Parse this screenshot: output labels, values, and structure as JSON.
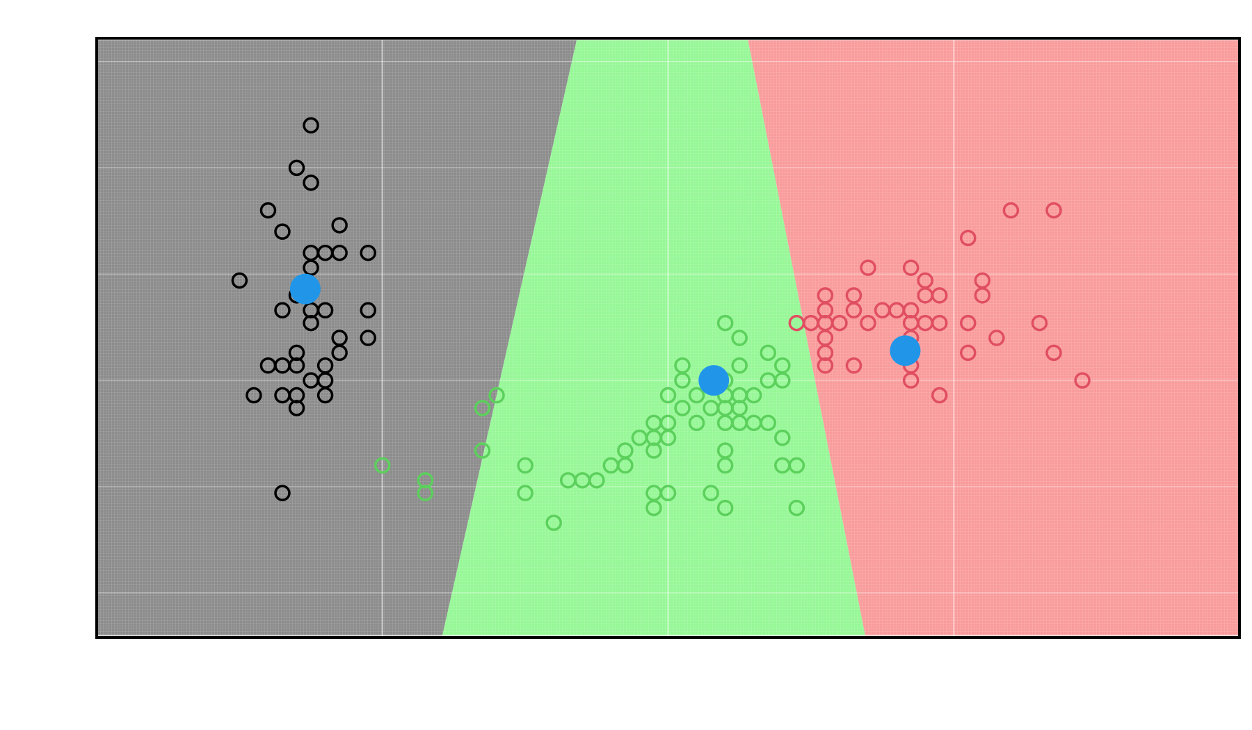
{
  "chart_data": {
    "type": "scatter",
    "title": "",
    "xlabel": "",
    "ylabel": "",
    "xlim": [
      4.0,
      8.0
    ],
    "ylim": [
      1.8,
      4.6
    ],
    "grid": true,
    "legend": "none",
    "colors": {
      "region_0": "#8c8c8c",
      "region_1": "#96f796",
      "region_2": "#f99b9b",
      "class_0": "#000000",
      "class_1": "#5cd05c",
      "class_2": "#e04e62",
      "centroid": "#2196e9"
    },
    "decision_boundaries": [
      {
        "between": [
          "class_0",
          "class_1"
        ],
        "points": [
          [
            5.68,
            4.6
          ],
          [
            5.21,
            1.8
          ]
        ]
      },
      {
        "between": [
          "class_1",
          "class_2"
        ],
        "points": [
          [
            6.28,
            4.6
          ],
          [
            6.69,
            1.8
          ]
        ]
      }
    ],
    "series": [
      {
        "class": "class_0",
        "marker": "hollow-circle",
        "points": [
          [
            4.75,
            4.2
          ],
          [
            4.7,
            4.0
          ],
          [
            4.75,
            3.93
          ],
          [
            4.6,
            3.8
          ],
          [
            4.65,
            3.7
          ],
          [
            4.85,
            3.73
          ],
          [
            4.75,
            3.6
          ],
          [
            4.8,
            3.6
          ],
          [
            4.85,
            3.6
          ],
          [
            4.95,
            3.6
          ],
          [
            4.75,
            3.53
          ],
          [
            4.5,
            3.47
          ],
          [
            4.7,
            3.4
          ],
          [
            4.65,
            3.33
          ],
          [
            4.75,
            3.33
          ],
          [
            4.8,
            3.33
          ],
          [
            4.75,
            3.27
          ],
          [
            4.85,
            3.2
          ],
          [
            4.95,
            3.2
          ],
          [
            4.7,
            3.13
          ],
          [
            4.85,
            3.13
          ],
          [
            4.6,
            3.07
          ],
          [
            4.65,
            3.07
          ],
          [
            4.7,
            3.07
          ],
          [
            4.8,
            3.07
          ],
          [
            4.75,
            3.0
          ],
          [
            4.8,
            3.0
          ],
          [
            4.55,
            2.93
          ],
          [
            4.65,
            2.93
          ],
          [
            4.7,
            2.93
          ],
          [
            4.8,
            2.93
          ],
          [
            4.7,
            2.87
          ],
          [
            4.65,
            2.47
          ],
          [
            4.95,
            3.33
          ]
        ]
      },
      {
        "class": "class_1",
        "marker": "hollow-circle",
        "points": [
          [
            6.25,
            3.2
          ],
          [
            6.35,
            3.13
          ],
          [
            6.25,
            3.07
          ],
          [
            6.4,
            3.07
          ],
          [
            6.2,
            3.0
          ],
          [
            6.35,
            3.0
          ],
          [
            6.4,
            3.0
          ],
          [
            6.05,
            3.0
          ],
          [
            6.15,
            3.0
          ],
          [
            6.2,
            2.93
          ],
          [
            6.25,
            2.93
          ],
          [
            6.3,
            2.93
          ],
          [
            6.1,
            2.93
          ],
          [
            6.0,
            2.93
          ],
          [
            6.05,
            2.87
          ],
          [
            6.2,
            2.87
          ],
          [
            6.15,
            2.87
          ],
          [
            6.25,
            2.87
          ],
          [
            6.0,
            2.8
          ],
          [
            6.2,
            2.8
          ],
          [
            6.1,
            2.8
          ],
          [
            6.25,
            2.8
          ],
          [
            6.3,
            2.8
          ],
          [
            6.35,
            2.8
          ],
          [
            5.95,
            2.8
          ],
          [
            5.9,
            2.73
          ],
          [
            5.95,
            2.73
          ],
          [
            6.0,
            2.73
          ],
          [
            5.85,
            2.67
          ],
          [
            5.95,
            2.67
          ],
          [
            6.4,
            2.73
          ],
          [
            6.2,
            2.67
          ],
          [
            5.8,
            2.6
          ],
          [
            5.85,
            2.6
          ],
          [
            6.4,
            2.6
          ],
          [
            6.2,
            2.6
          ],
          [
            6.45,
            2.6
          ],
          [
            5.5,
            2.6
          ],
          [
            5.75,
            2.53
          ],
          [
            5.7,
            2.53
          ],
          [
            5.65,
            2.53
          ],
          [
            5.5,
            2.47
          ],
          [
            5.95,
            2.47
          ],
          [
            6.0,
            2.47
          ],
          [
            6.15,
            2.47
          ],
          [
            6.2,
            2.4
          ],
          [
            6.45,
            2.4
          ],
          [
            5.95,
            2.4
          ],
          [
            5.6,
            2.33
          ],
          [
            5.0,
            2.6
          ],
          [
            5.15,
            2.53
          ],
          [
            5.15,
            2.47
          ],
          [
            5.35,
            2.67
          ],
          [
            5.35,
            2.87
          ],
          [
            5.4,
            2.93
          ],
          [
            6.2,
            3.27
          ],
          [
            6.05,
            3.07
          ]
        ]
      },
      {
        "class": "class_2",
        "marker": "hollow-circle",
        "points": [
          [
            7.2,
            3.8
          ],
          [
            7.35,
            3.8
          ],
          [
            7.05,
            3.67
          ],
          [
            6.7,
            3.53
          ],
          [
            6.85,
            3.53
          ],
          [
            6.9,
            3.47
          ],
          [
            7.1,
            3.47
          ],
          [
            6.55,
            3.4
          ],
          [
            6.65,
            3.4
          ],
          [
            6.9,
            3.4
          ],
          [
            6.95,
            3.4
          ],
          [
            7.1,
            3.4
          ],
          [
            6.55,
            3.33
          ],
          [
            6.65,
            3.33
          ],
          [
            6.75,
            3.33
          ],
          [
            6.8,
            3.33
          ],
          [
            6.85,
            3.33
          ],
          [
            6.5,
            3.27
          ],
          [
            6.55,
            3.27
          ],
          [
            6.7,
            3.27
          ],
          [
            6.85,
            3.27
          ],
          [
            6.9,
            3.27
          ],
          [
            6.95,
            3.27
          ],
          [
            7.05,
            3.27
          ],
          [
            7.3,
            3.27
          ],
          [
            6.85,
            3.2
          ],
          [
            7.15,
            3.2
          ],
          [
            6.55,
            3.13
          ],
          [
            6.85,
            3.13
          ],
          [
            7.05,
            3.13
          ],
          [
            7.35,
            3.13
          ],
          [
            6.55,
            3.07
          ],
          [
            6.65,
            3.07
          ],
          [
            6.85,
            3.07
          ],
          [
            6.45,
            3.27
          ],
          [
            6.85,
            3.0
          ],
          [
            7.45,
            3.0
          ],
          [
            6.95,
            2.93
          ],
          [
            6.55,
            3.2
          ],
          [
            6.6,
            3.27
          ]
        ]
      },
      {
        "class": "centroid",
        "marker": "filled-circle",
        "points": [
          [
            4.73,
            3.43
          ],
          [
            6.16,
            3.0
          ],
          [
            6.83,
            3.14
          ]
        ]
      }
    ]
  }
}
